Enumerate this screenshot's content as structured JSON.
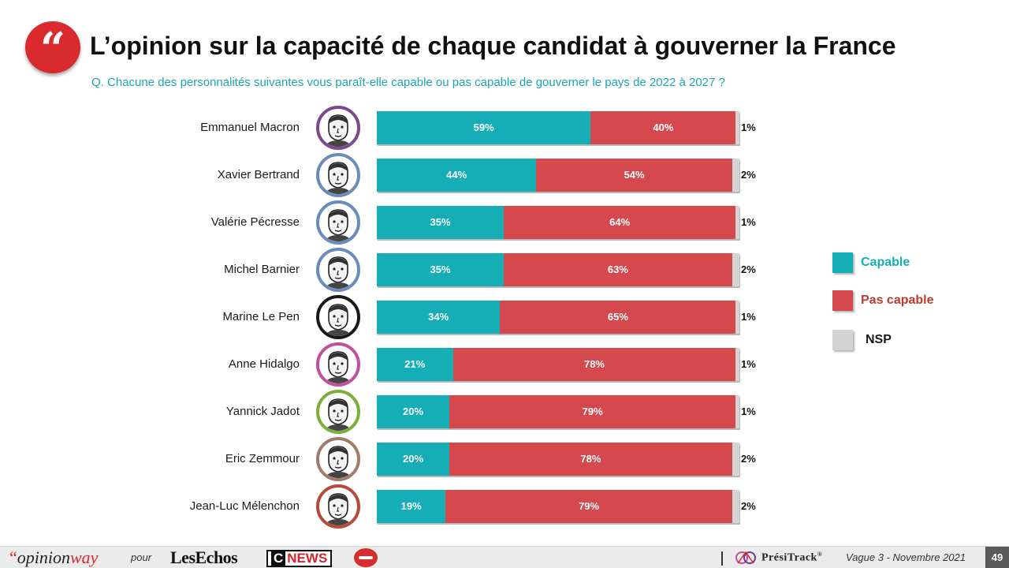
{
  "header": {
    "quote_glyph": "“",
    "title": "L’opinion sur la capacité de chaque candidat à gouverner la France",
    "subtitle": "Q. Chacune des personnalités suivantes vous paraît-elle capable ou pas capable de gouverner le pays de 2022 à 2027 ?"
  },
  "chart_data": {
    "type": "bar",
    "orientation": "horizontal",
    "stacked": true,
    "unit": "%",
    "categories": [
      "Emmanuel Macron",
      "Xavier Bertrand",
      "Valérie Pécresse",
      "Michel Barnier",
      "Marine Le Pen",
      "Anne Hidalgo",
      "Yannick Jadot",
      "Eric Zemmour",
      "Jean-Luc Mélenchon"
    ],
    "series": [
      {
        "name": "Capable",
        "color": "#15aeb7",
        "values": [
          59,
          44,
          35,
          35,
          34,
          21,
          20,
          20,
          19
        ]
      },
      {
        "name": "Pas capable",
        "color": "#d5494e",
        "values": [
          40,
          54,
          64,
          63,
          65,
          78,
          79,
          78,
          79
        ]
      },
      {
        "name": "NSP",
        "color": "#d4d4d4",
        "values": [
          1,
          2,
          1,
          2,
          1,
          1,
          1,
          2,
          2
        ]
      }
    ],
    "avatar_ring_colors": [
      "#7a4a8c",
      "#6b8cb8",
      "#6b8cb8",
      "#6b8cb8",
      "#1a1a1a",
      "#c0509c",
      "#7ab03a",
      "#a07a6a",
      "#b84a3a"
    ],
    "legend": {
      "position": "right",
      "items": [
        {
          "label": "Capable",
          "color": "#15aeb7",
          "label_color": "#15aeb7"
        },
        {
          "label": "Pas capable",
          "color": "#d5494e",
          "label_color": "#c0392b"
        },
        {
          "label": "NSP",
          "color": "#d4d4d4",
          "label_color": "#1a1a1a"
        }
      ]
    }
  },
  "footer": {
    "brand_quote": "“",
    "brand_opinion": "opinion",
    "brand_way": "way",
    "pour": "pour",
    "lesechos": "LesEchos",
    "cnews_c": "C",
    "cnews_news": "NEWS",
    "presitrack": "PrésiTrack",
    "presitrack_mark": "®",
    "vague": "Vague 3 - Novembre 2021",
    "page_number": "49"
  }
}
